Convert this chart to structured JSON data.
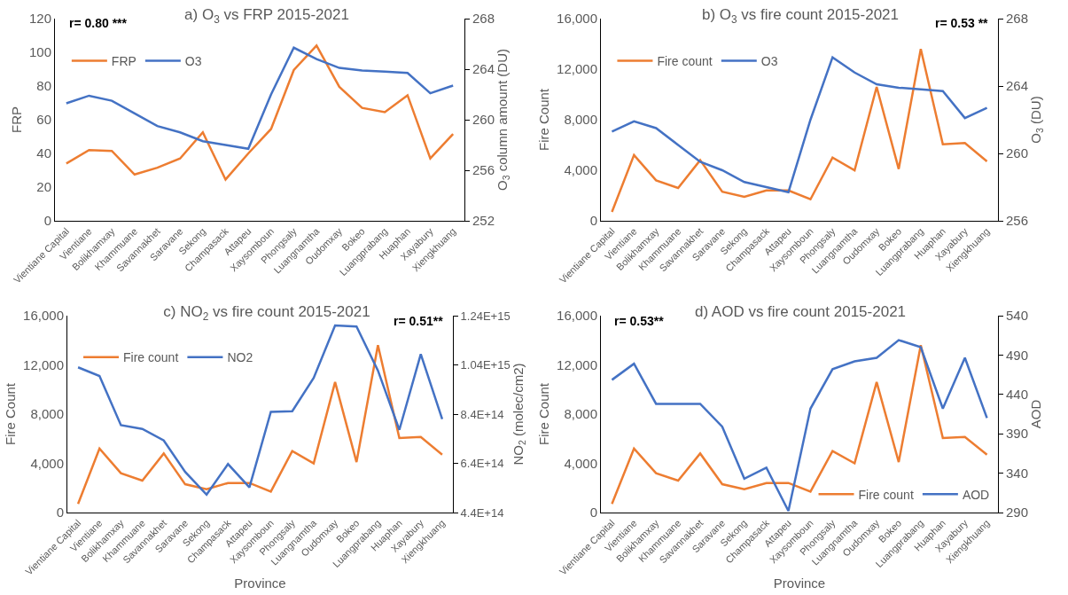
{
  "chart_data": [
    {
      "type": "line",
      "title": "a) O$_{3}$ vs FRP 2015-2021",
      "ylabel": "FRP",
      "y2label": "O$_{3}$ column amount (DU)",
      "legend": "top left",
      "annotations": [
        "r= 0.80 ***"
      ],
      "categories": [
        "Vientiane Capital",
        "Vientiane",
        "Bolikhamxay",
        "Khammuane",
        "Savannakhet",
        "Saravane",
        "Sekong",
        "Champasack",
        "Attapeu",
        "Xaysomboun",
        "Phongsaly",
        "Luangnamtha",
        "Oudomxay",
        "Bokeo",
        "Luangprabang",
        "Huaphan",
        "Xayabury",
        "Xiengkhuang"
      ],
      "ylim": [
        0,
        120
      ],
      "yticks": [
        0,
        20,
        40,
        60,
        80,
        100,
        120
      ],
      "y2lim": [
        252,
        268
      ],
      "y2ticks": [
        252,
        256,
        260,
        264,
        268
      ],
      "series": [
        {
          "name": "FRP",
          "color": "#ed7d31",
          "values": [
            34,
            42,
            41.5,
            27.5,
            31.5,
            37,
            52.5,
            24.5,
            40,
            54.5,
            89.5,
            104,
            79.5,
            67,
            64.5,
            74.5,
            37,
            51.5
          ]
        },
        {
          "name": "O3",
          "color": "#4472c4",
          "axis": "y2",
          "values": [
            261.3,
            261.9,
            261.5,
            260.5,
            259.5,
            259.0,
            258.3,
            258.0,
            257.7,
            262.0,
            265.7,
            264.8,
            264.1,
            263.9,
            263.8,
            263.7,
            262.1,
            262.7
          ]
        }
      ]
    },
    {
      "type": "line",
      "title": "b) O$_{3}$ vs fire count 2015-2021",
      "ylabel": "Fire Count",
      "y2label": "O$_{3}$ (DU)",
      "legend": "top left",
      "annotations": [
        "r= 0.53 **"
      ],
      "categories": [
        "Vientiane Capital",
        "Vientiane",
        "Bolikhamxay",
        "Khammuane",
        "Savannakhet",
        "Saravane",
        "Sekong",
        "Champasack",
        "Attapeu",
        "Xaysomboun",
        "Phongsaly",
        "Luangnamtha",
        "Oudomxay",
        "Bokeo",
        "Luangprabang",
        "Huaphan",
        "Xayabury",
        "Xiengkhuang"
      ],
      "ylim": [
        0,
        16000
      ],
      "yticks": [
        0,
        {
          "value": 4000,
          "label": "4,000"
        },
        {
          "value": 8000,
          "label": "8,000"
        },
        {
          "value": 12000,
          "label": "12,000"
        },
        {
          "value": 16000,
          "label": "16,000"
        }
      ],
      "y2lim": [
        256,
        268
      ],
      "y2ticks": [
        256,
        260,
        264,
        268
      ],
      "series": [
        {
          "name": "Fire count",
          "color": "#ed7d31",
          "values": [
            700,
            5200,
            3200,
            2600,
            4800,
            2300,
            1900,
            2400,
            2400,
            1700,
            5000,
            4000,
            10600,
            4100,
            13600,
            6050,
            6150,
            4700
          ]
        },
        {
          "name": "O3",
          "color": "#4472c4",
          "axis": "y2",
          "values": [
            261.3,
            261.9,
            261.5,
            260.5,
            259.5,
            259.0,
            258.3,
            258.0,
            257.7,
            262.0,
            265.7,
            264.8,
            264.1,
            263.9,
            263.8,
            263.7,
            262.1,
            262.7
          ]
        }
      ]
    },
    {
      "type": "line",
      "title": "c) NO$_{2}$ vs fire count 2015-2021",
      "xlabel": "Province",
      "ylabel": "Fire Count",
      "y2label": "NO$_{2}$ (molec/cm2)",
      "legend": "top left",
      "annotations": [
        "r= 0.51**"
      ],
      "categories": [
        "Vientiane Capital",
        "Vientiane",
        "Bolikhamxay",
        "Khammuane",
        "Savannakhet",
        "Saravane",
        "Sekong",
        "Champasack",
        "Attapeu",
        "Xaysomboun",
        "Phongsaly",
        "Luangnamtha",
        "Oudomxay",
        "Bokeo",
        "Luangprabang",
        "Huaphan",
        "Xayabury",
        "Xiengkhuang"
      ],
      "ylim": [
        0,
        16000
      ],
      "yticks": [
        0,
        {
          "value": 4000,
          "label": "4,000"
        },
        {
          "value": 8000,
          "label": "8,000"
        },
        {
          "value": 12000,
          "label": "12,000"
        },
        {
          "value": 16000,
          "label": "16,000"
        }
      ],
      "y2lim": [
        440000000000000.0,
        1240000000000000.0
      ],
      "y2ticks": [
        {
          "value": 440000000000000.0,
          "label": "4.4E+14"
        },
        {
          "value": 640000000000000.0,
          "label": "6.4E+14"
        },
        {
          "value": 840000000000000.0,
          "label": "8.4E+14"
        },
        {
          "value": 1040000000000000.0,
          "label": "1.04E+15"
        },
        {
          "value": 1240000000000000.0,
          "label": "1.24E+15"
        }
      ],
      "series": [
        {
          "name": "Fire count",
          "color": "#ed7d31",
          "values": [
            700,
            5200,
            3200,
            2600,
            4800,
            2300,
            1900,
            2400,
            2400,
            1700,
            5000,
            4000,
            10600,
            4100,
            13600,
            6050,
            6150,
            4700
          ]
        },
        {
          "name": "NO2",
          "color": "#4472c4",
          "axis": "y2",
          "values": [
            1030000000000000.0,
            995000000000000.0,
            795000000000000.0,
            780000000000000.0,
            733000000000000.0,
            605000000000000.0,
            513000000000000.0,
            637000000000000.0,
            542000000000000.0,
            849000000000000.0,
            852000000000000.0,
            987000000000000.0,
            1200000000000000.0,
            1196000000000000.0,
            1017000000000000.0,
            776000000000000.0,
            1084000000000000.0,
            820000000000000.0
          ]
        }
      ]
    },
    {
      "type": "line",
      "title": "d) AOD vs fire count 2015-2021",
      "xlabel": "Province",
      "ylabel": "Fire Count",
      "y2label": "AOD",
      "legend": "bottom right",
      "annotations": [
        "r= 0.53**"
      ],
      "categories": [
        "Vientiane Capital",
        "Vientiane",
        "Bolikhamxay",
        "Khammuane",
        "Savannakhet",
        "Saravane",
        "Sekong",
        "Champasack",
        "Attapeu",
        "Xaysomboun",
        "Phongsaly",
        "Luangnamtha",
        "Oudomxay",
        "Bokeo",
        "Luangprabang",
        "Huaphan",
        "Xayabury",
        "Xiengkhuang"
      ],
      "ylim": [
        0,
        16000
      ],
      "yticks": [
        0,
        {
          "value": 4000,
          "label": "4,000"
        },
        {
          "value": 8000,
          "label": "8,000"
        },
        {
          "value": 12000,
          "label": "12,000"
        },
        {
          "value": 16000,
          "label": "16,000"
        }
      ],
      "y2lim": [
        290,
        540
      ],
      "y2ticks": [
        290,
        340,
        390,
        440,
        490,
        540
      ],
      "series": [
        {
          "name": "Fire count",
          "color": "#ed7d31",
          "values": [
            700,
            5200,
            3200,
            2600,
            4800,
            2300,
            1900,
            2400,
            2400,
            1700,
            5000,
            4000,
            10600,
            4100,
            13600,
            6050,
            6150,
            4700
          ]
        },
        {
          "name": "AOD",
          "color": "#4472c4",
          "axis": "y2",
          "values": [
            458.5,
            479,
            428,
            428,
            428,
            399,
            333,
            347,
            292,
            422,
            472,
            482,
            486.5,
            509,
            500,
            422,
            486.5,
            410
          ]
        }
      ]
    }
  ]
}
